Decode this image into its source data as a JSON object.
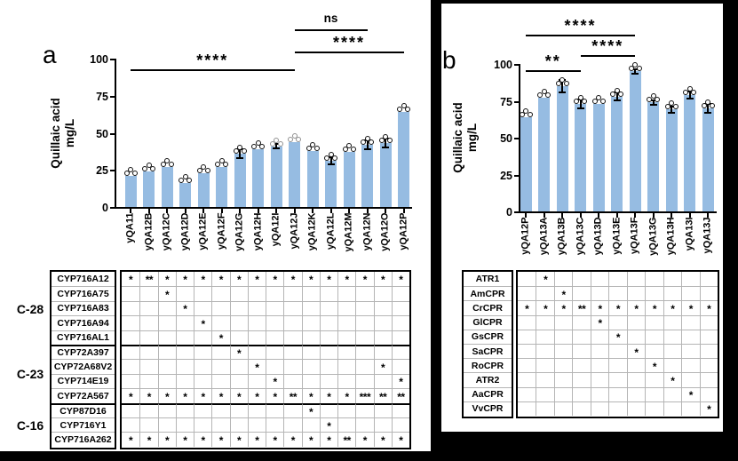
{
  "colors": {
    "bar": "#96bce2",
    "dot_outline": "#111111",
    "dot_outline_gray": "#909090",
    "axis": "#000000",
    "grid_line": "#b5b5b5"
  },
  "chart_data": [
    {
      "type": "bar",
      "panel_label": "a",
      "ylabel": "Quillaic acid mg/L",
      "ylabel_lines": [
        "Quillaic acid",
        "mg/L"
      ],
      "ylim": [
        0,
        100
      ],
      "yticks": [
        0,
        25,
        50,
        75,
        100
      ],
      "categories": [
        "yQA11",
        "yQA12B",
        "yQA12C",
        "yQA12D",
        "yQA12E",
        "yQA12F",
        "yQA12G",
        "yQA12H",
        "yQA12I",
        "yQA12J",
        "yQA12K",
        "yQA12L",
        "yQA12M",
        "yQA12N",
        "yQA12O",
        "yQA12P"
      ],
      "values": [
        21,
        24,
        27,
        16,
        23,
        27,
        36,
        39,
        41,
        44,
        38,
        31,
        37,
        42,
        43,
        64
      ],
      "errors": [
        1,
        1,
        1,
        1,
        1,
        1,
        3,
        1,
        1.5,
        1,
        1.2,
        2.5,
        1,
        3,
        3,
        1
      ],
      "gray_dot_indices": [
        8,
        9
      ],
      "significance": [
        {
          "label": "****",
          "from": "yQA11",
          "to": "yQA12J"
        },
        {
          "label": "ns",
          "from": "yQA12J",
          "to": "yQA12N"
        },
        {
          "label": "****",
          "from": "yQA12J",
          "to": "yQA12P"
        }
      ],
      "matrix": {
        "groups": [
          {
            "label": "C-28",
            "rows": 5
          },
          {
            "label": "C-23",
            "rows": 4
          },
          {
            "label": "C-16",
            "rows": 3
          }
        ],
        "row_labels": [
          "CYP716A12",
          "CYP716A75",
          "CYP716A83",
          "CYP716A94",
          "CYP716AL1",
          "CYP72A397",
          "CYP72A68V2",
          "CYP714E19",
          "CYP72A567",
          "CYP87D16",
          "CYP716Y1",
          "CYP716A262"
        ],
        "cells": [
          [
            "*",
            "**",
            "*",
            "*",
            "*",
            "*",
            "*",
            "*",
            "*",
            "*",
            "*",
            "*",
            "*",
            "*",
            "*",
            "*"
          ],
          [
            "",
            "",
            "*",
            "",
            "",
            "",
            "",
            "",
            "",
            "",
            "",
            "",
            "",
            "",
            "",
            ""
          ],
          [
            "",
            "",
            "",
            "*",
            "",
            "",
            "",
            "",
            "",
            "",
            "",
            "",
            "",
            "",
            "",
            ""
          ],
          [
            "",
            "",
            "",
            "",
            "*",
            "",
            "",
            "",
            "",
            "",
            "",
            "",
            "",
            "",
            "",
            ""
          ],
          [
            "",
            "",
            "",
            "",
            "",
            "*",
            "",
            "",
            "",
            "",
            "",
            "",
            "",
            "",
            "",
            ""
          ],
          [
            "",
            "",
            "",
            "",
            "",
            "",
            "*",
            "",
            "",
            "",
            "",
            "",
            "",
            "",
            "",
            ""
          ],
          [
            "",
            "",
            "",
            "",
            "",
            "",
            "",
            "*",
            "",
            "",
            "",
            "",
            "",
            "",
            "*",
            ""
          ],
          [
            "",
            "",
            "",
            "",
            "",
            "",
            "",
            "",
            "*",
            "",
            "",
            "",
            "",
            "",
            "",
            "*"
          ],
          [
            "*",
            "*",
            "*",
            "*",
            "*",
            "*",
            "*",
            "*",
            "*",
            "**",
            "*",
            "*",
            "*",
            "***",
            "**",
            "**"
          ],
          [
            "",
            "",
            "",
            "",
            "",
            "",
            "",
            "",
            "",
            "",
            "*",
            "",
            "",
            "",
            "",
            ""
          ],
          [
            "",
            "",
            "",
            "",
            "",
            "",
            "",
            "",
            "",
            "",
            "",
            "*",
            "",
            "",
            "",
            ""
          ],
          [
            "*",
            "*",
            "*",
            "*",
            "*",
            "*",
            "*",
            "*",
            "*",
            "*",
            "*",
            "*",
            "**",
            "*",
            "*",
            "*"
          ]
        ]
      }
    },
    {
      "type": "bar",
      "panel_label": "b",
      "ylabel": "Quillaic acid mg/L",
      "ylabel_lines": [
        "Quillaic acid",
        "mg/L"
      ],
      "ylim": [
        0,
        100
      ],
      "yticks": [
        0,
        25,
        50,
        75,
        100
      ],
      "categories": [
        "yQA12P",
        "yQA13A",
        "yQA13B",
        "yQA13C",
        "yQA13D",
        "yQA13E",
        "yQA13F",
        "yQA13G",
        "yQA13H",
        "yQA13I",
        "yQA13J"
      ],
      "values": [
        64,
        77,
        85,
        73,
        73,
        78,
        95,
        74,
        69,
        79,
        70
      ],
      "errors": [
        1,
        1,
        4,
        3,
        1,
        2.5,
        1.5,
        1.5,
        2,
        2.5,
        3
      ],
      "gray_dot_indices": [],
      "significance": [
        {
          "label": "**",
          "from": "yQA12P",
          "to": "yQA13C"
        },
        {
          "label": "****",
          "from": "yQA12P",
          "to": "yQA13F"
        },
        {
          "label": "****",
          "from": "yQA13C",
          "to": "yQA13F"
        }
      ],
      "matrix": {
        "groups": [
          {
            "label": "",
            "rows": 10
          }
        ],
        "row_labels": [
          "ATR1",
          "AmCPR",
          "CrCPR",
          "GlCPR",
          "GsCPR",
          "SaCPR",
          "RoCPR",
          "ATR2",
          "AaCPR",
          "VvCPR"
        ],
        "cells": [
          [
            "",
            "*",
            "",
            "",
            "",
            "",
            "",
            "",
            "",
            "",
            ""
          ],
          [
            "",
            "",
            "*",
            "",
            "",
            "",
            "",
            "",
            "",
            "",
            ""
          ],
          [
            "*",
            "*",
            "*",
            "**",
            "*",
            "*",
            "*",
            "*",
            "*",
            "*",
            "*"
          ],
          [
            "",
            "",
            "",
            "",
            "*",
            "",
            "",
            "",
            "",
            "",
            ""
          ],
          [
            "",
            "",
            "",
            "",
            "",
            "*",
            "",
            "",
            "",
            "",
            ""
          ],
          [
            "",
            "",
            "",
            "",
            "",
            "",
            "*",
            "",
            "",
            "",
            ""
          ],
          [
            "",
            "",
            "",
            "",
            "",
            "",
            "",
            "*",
            "",
            "",
            ""
          ],
          [
            "",
            "",
            "",
            "",
            "",
            "",
            "",
            "",
            "*",
            "",
            ""
          ],
          [
            "",
            "",
            "",
            "",
            "",
            "",
            "",
            "",
            "",
            "*",
            ""
          ],
          [
            "",
            "",
            "",
            "",
            "",
            "",
            "",
            "",
            "",
            "",
            "*"
          ]
        ]
      }
    }
  ]
}
